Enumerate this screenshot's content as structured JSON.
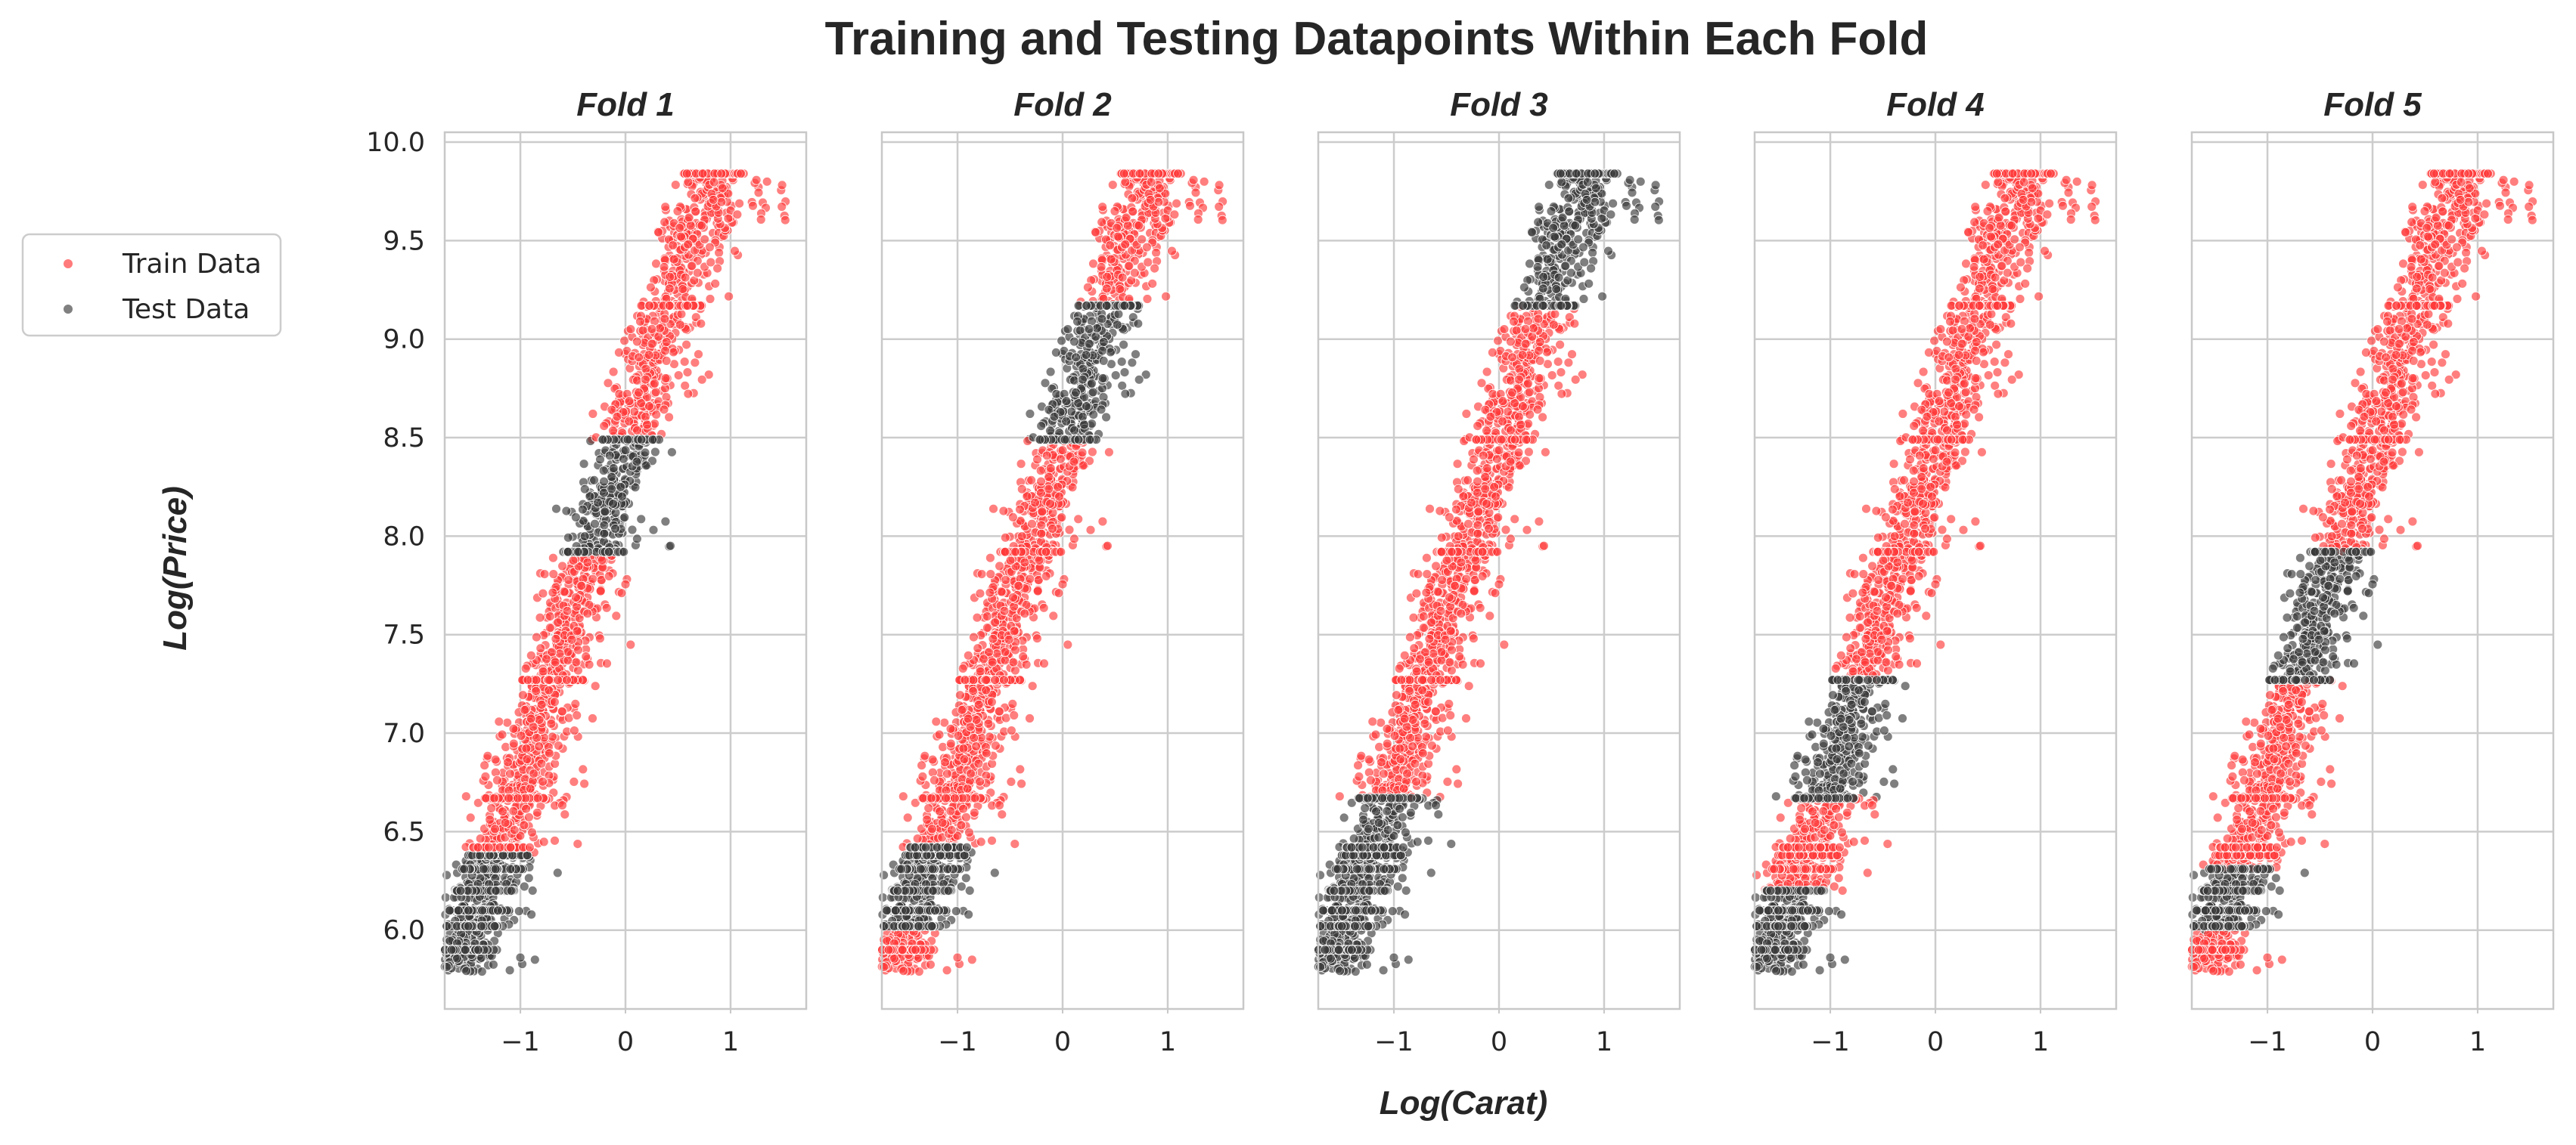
{
  "figure": {
    "title": "Training and Testing Datapoints Within Each Fold",
    "xlabel": "Log(Carat)",
    "ylabel": "Log(Price)"
  },
  "legend": {
    "placement": "left",
    "items": [
      {
        "label": "Train Data",
        "color": "#ff4d4d"
      },
      {
        "label": "Test Data",
        "color": "#555555"
      }
    ]
  },
  "colors": {
    "train": "#ff3b3b",
    "test": "#3a3a3a",
    "grid": "#cccccc",
    "spine": "#c8c8c8"
  },
  "chart_data": {
    "type": "scatter",
    "xlim": [
      -1.72,
      1.72
    ],
    "ylim": [
      5.6,
      10.05
    ],
    "xticks": [
      -1,
      0,
      1
    ],
    "xtick_labels": [
      "−1",
      "0",
      "1"
    ],
    "yticks": [
      6.0,
      6.5,
      7.0,
      7.5,
      8.0,
      8.5,
      9.0,
      9.5,
      10.0
    ],
    "ytick_labels": [
      "6.0",
      "6.5",
      "7.0",
      "7.5",
      "8.0",
      "8.5",
      "9.0",
      "9.5",
      "10.0"
    ],
    "grid": true,
    "series_names": [
      "Train Data",
      "Test Data"
    ],
    "price_range": [
      5.79,
      9.84
    ],
    "saturated_price_bands": [
      5.9,
      6.02,
      6.1,
      6.2,
      6.31,
      6.38,
      6.42,
      6.67,
      7.27,
      7.92,
      8.49,
      9.17,
      9.84
    ],
    "folds": [
      {
        "title": "Fold 1",
        "test_price_ranges": [
          [
            5.79,
            6.02
          ],
          [
            6.02,
            6.38
          ],
          [
            7.92,
            8.49
          ]
        ]
      },
      {
        "title": "Fold 2",
        "test_price_ranges": [
          [
            6.02,
            6.42
          ],
          [
            8.49,
            9.17
          ]
        ]
      },
      {
        "title": "Fold 3",
        "test_price_ranges": [
          [
            5.79,
            6.1
          ],
          [
            6.1,
            6.67
          ],
          [
            9.17,
            9.84
          ]
        ]
      },
      {
        "title": "Fold 4",
        "test_price_ranges": [
          [
            5.79,
            6.2
          ],
          [
            6.67,
            7.27
          ]
        ]
      },
      {
        "title": "Fold 5",
        "test_price_ranges": [
          [
            6.0,
            6.31
          ],
          [
            7.27,
            7.92
          ]
        ]
      }
    ]
  }
}
